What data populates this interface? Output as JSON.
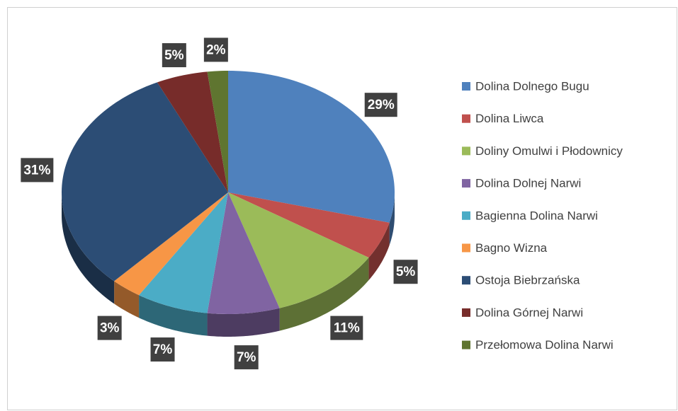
{
  "chart_data": {
    "type": "pie",
    "categories": [
      "Dolina Dolnego Bugu",
      "Dolina Liwca",
      "Doliny Omulwi i Płodownicy",
      "Dolina Dolnej Narwi",
      "Bagienna Dolina Narwi",
      "Bagno Wizna",
      "Ostoja Biebrzańska",
      "Dolina Górnej Narwi",
      "Przełomowa Dolina Narwi"
    ],
    "values": [
      29,
      5,
      11,
      7,
      7,
      3,
      31,
      5,
      2
    ],
    "value_labels": [
      "29%",
      "5%",
      "11%",
      "7%",
      "7%",
      "3%",
      "31%",
      "5%",
      "2%"
    ],
    "colors": [
      "#4f81bd",
      "#c0504d",
      "#9bbb59",
      "#8064a2",
      "#4bacc6",
      "#f79646",
      "#2c4d75",
      "#772c2a",
      "#5f7530"
    ],
    "legend": "right"
  }
}
